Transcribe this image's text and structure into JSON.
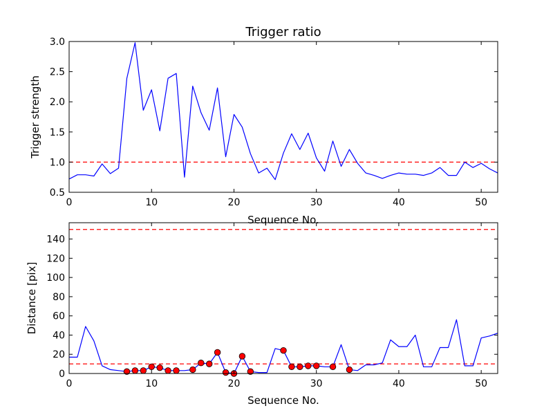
{
  "chart_data": [
    {
      "type": "line",
      "title": "Trigger ratio",
      "xlabel": "Sequence No.",
      "ylabel": "Trigger strength",
      "xlim": [
        0,
        52
      ],
      "ylim": [
        0.5,
        3.0
      ],
      "xticks": [
        0,
        10,
        20,
        30,
        40,
        50
      ],
      "yticks": [
        0.5,
        1.0,
        1.5,
        2.0,
        2.5,
        3.0
      ],
      "ytick_labels": [
        "0.5",
        "1.0",
        "1.5",
        "2.0",
        "2.5",
        "3.0"
      ],
      "series": [
        {
          "name": "trigger strength",
          "color": "#0000ff",
          "x": [
            0,
            1,
            2,
            3,
            4,
            5,
            6,
            7,
            8,
            9,
            10,
            11,
            12,
            13,
            14,
            15,
            16,
            17,
            18,
            19,
            20,
            21,
            22,
            23,
            24,
            25,
            26,
            27,
            28,
            29,
            30,
            31,
            32,
            33,
            34,
            35,
            36,
            37,
            38,
            39,
            40,
            41,
            42,
            43,
            44,
            45,
            46,
            47,
            48,
            49,
            50,
            51,
            52
          ],
          "values": [
            0.72,
            0.79,
            0.79,
            0.77,
            0.97,
            0.81,
            0.9,
            2.39,
            2.98,
            1.86,
            2.2,
            1.52,
            2.39,
            2.47,
            0.75,
            2.26,
            1.82,
            1.53,
            2.23,
            1.09,
            1.79,
            1.58,
            1.14,
            0.82,
            0.9,
            0.71,
            1.15,
            1.47,
            1.21,
            1.48,
            1.07,
            0.85,
            1.35,
            0.93,
            1.21,
            0.98,
            0.82,
            0.78,
            0.73,
            0.78,
            0.82,
            0.8,
            0.8,
            0.78,
            0.82,
            0.91,
            0.78,
            0.78,
            1.0,
            0.91,
            0.98,
            0.89,
            0.82
          ]
        }
      ],
      "hlines": [
        {
          "y": 1.0,
          "color": "#ff0000",
          "style": "dashed"
        }
      ]
    },
    {
      "type": "line",
      "title": "",
      "xlabel": "Sequence No.",
      "ylabel": "Distance [pix]",
      "xlim": [
        0,
        52
      ],
      "ylim": [
        0,
        157
      ],
      "xticks": [
        0,
        10,
        20,
        30,
        40,
        50
      ],
      "yticks": [
        0,
        20,
        40,
        60,
        80,
        100,
        120,
        140
      ],
      "series": [
        {
          "name": "distance",
          "color": "#0000ff",
          "x": [
            0,
            1,
            2,
            3,
            4,
            5,
            6,
            7,
            8,
            9,
            10,
            11,
            12,
            13,
            14,
            15,
            16,
            17,
            18,
            19,
            20,
            21,
            22,
            23,
            24,
            25,
            26,
            27,
            28,
            29,
            30,
            31,
            32,
            33,
            34,
            35,
            36,
            37,
            38,
            39,
            40,
            41,
            42,
            43,
            44,
            45,
            46,
            47,
            48,
            49,
            50,
            51,
            52
          ],
          "values": [
            17,
            17,
            49,
            34,
            8,
            4,
            3,
            2,
            3,
            3,
            7,
            6,
            3,
            3,
            3,
            4,
            11,
            10,
            22,
            1,
            0,
            18,
            2,
            1,
            1,
            26,
            24,
            7,
            7,
            8,
            8,
            7,
            7,
            30,
            4,
            3,
            9,
            9,
            11,
            35,
            28,
            28,
            40,
            7,
            7,
            27,
            27,
            56,
            8,
            8,
            37,
            39,
            42
          ]
        },
        {
          "name": "flagged points",
          "color": "#ff0000",
          "marker": "circle",
          "x": [
            7,
            8,
            9,
            10,
            11,
            12,
            13,
            15,
            16,
            17,
            18,
            19,
            20,
            21,
            22,
            26,
            27,
            28,
            29,
            30,
            32,
            34
          ],
          "values": [
            2,
            3,
            3,
            7,
            6,
            3,
            3,
            4,
            11,
            10,
            22,
            1,
            0,
            18,
            2,
            24,
            7,
            7,
            8,
            8,
            7,
            4
          ]
        }
      ],
      "hlines": [
        {
          "y": 10,
          "color": "#ff0000",
          "style": "dashed"
        },
        {
          "y": 150,
          "color": "#ff0000",
          "style": "dashed"
        }
      ]
    }
  ]
}
